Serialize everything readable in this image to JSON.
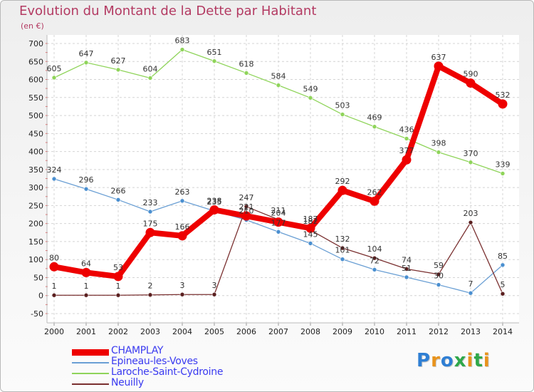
{
  "title": "Evolution du Montant de la Dette par Habitant",
  "subtitle": "(en €)",
  "logo": {
    "text": "Proxiti",
    "colors": [
      "#2f7fd4",
      "#e8931c",
      "#2f7fd4",
      "#2fa84a",
      "#e8931c",
      "#2fa84a",
      "#e8931c"
    ]
  },
  "chart_data": {
    "type": "line",
    "x": [
      "2000",
      "2001",
      "2002",
      "2003",
      "2004",
      "2005",
      "2006",
      "2007",
      "2008",
      "2009",
      "2010",
      "2011",
      "2012",
      "2013",
      "2014"
    ],
    "ylim": [
      -50,
      700
    ],
    "yticks": [
      "-50",
      "0",
      "50",
      "100",
      "150",
      "200",
      "250",
      "300",
      "350",
      "400",
      "450",
      "500",
      "550",
      "600",
      "650",
      "700"
    ],
    "grid": true,
    "legend_position": "bottom-left",
    "series": [
      {
        "name": "CHAMPLAY",
        "color": "#ee0000",
        "marker_color": "#ee0000",
        "emphasis": true,
        "values": [
          80,
          64,
          53,
          175,
          166,
          238,
          221,
          204,
          187,
          292,
          262,
          377,
          637,
          590,
          532
        ],
        "labels": [
          "80",
          "64",
          "53",
          "175",
          "166",
          "238",
          "221",
          "204",
          "187",
          "292",
          "262",
          "377",
          "637",
          "590",
          "532"
        ]
      },
      {
        "name": "Epineau-les-Voves",
        "color": "#6a9fd4",
        "marker_color": "#4a8fd0",
        "values": [
          324,
          296,
          266,
          233,
          263,
          235,
          210,
          177,
          145,
          101,
          72,
          51,
          30,
          7,
          85
        ],
        "labels": [
          "324",
          "296",
          "266",
          "233",
          "263",
          "235",
          "210",
          "177",
          "145",
          "101",
          "72",
          "51",
          "30",
          "7",
          "85"
        ]
      },
      {
        "name": "Laroche-Saint-Cydroine",
        "color": "#8fd45a",
        "marker_color": "#8fd45a",
        "values": [
          605,
          647,
          627,
          604,
          683,
          651,
          618,
          584,
          549,
          503,
          469,
          436,
          398,
          370,
          339
        ],
        "labels": [
          "605",
          "647",
          "627",
          "604",
          "683",
          "651",
          "618",
          "584",
          "549",
          "503",
          "469",
          "436",
          "398",
          "370",
          "339"
        ]
      },
      {
        "name": "Neuilly",
        "color": "#7a3030",
        "marker_color": "#5a1f1f",
        "values": [
          1,
          1,
          1,
          2,
          3,
          3,
          247,
          211,
          182,
          132,
          104,
          74,
          59,
          203,
          5
        ],
        "labels": [
          "1",
          "1",
          "1",
          "2",
          "3",
          "3",
          "247",
          "211",
          "182",
          "132",
          "104",
          "74",
          "59",
          "203",
          "5"
        ]
      }
    ]
  }
}
